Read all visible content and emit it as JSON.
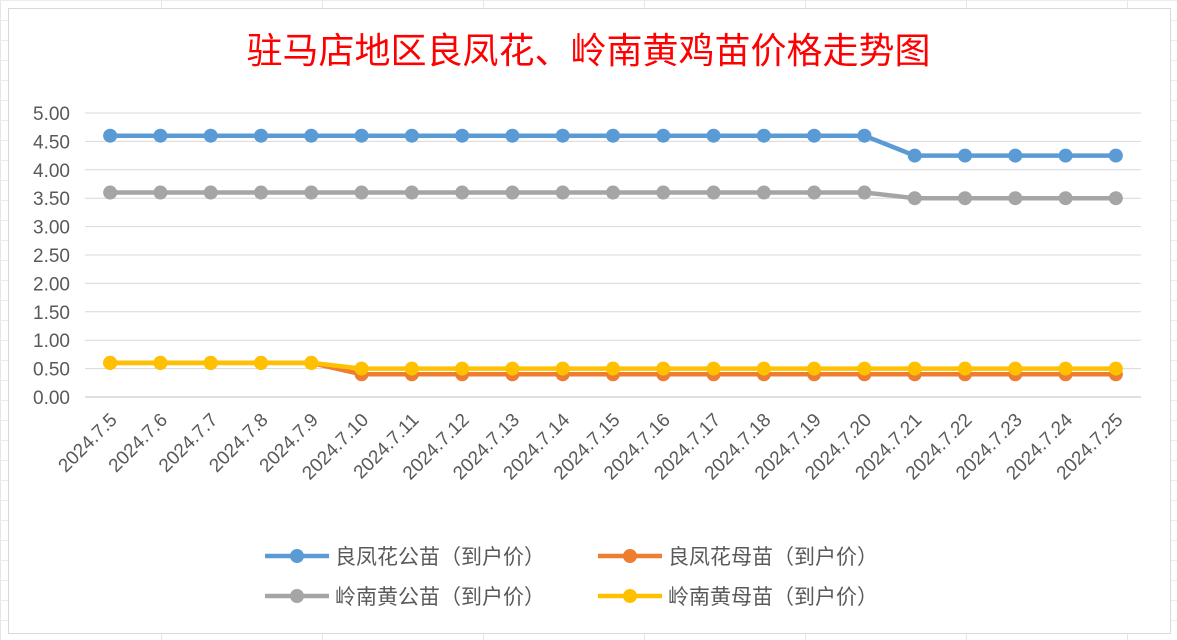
{
  "chart_data": {
    "type": "line",
    "title": "驻马店地区良凤花、岭南黄鸡苗价格走势图",
    "x": [
      "2024.7.5",
      "2024.7.6",
      "2024.7.7",
      "2024.7.8",
      "2024.7.9",
      "2024.7.10",
      "2024.7.11",
      "2024.7.12",
      "2024.7.13",
      "2024.7.14",
      "2024.7.15",
      "2024.7.16",
      "2024.7.17",
      "2024.7.18",
      "2024.7.19",
      "2024.7.20",
      "2024.7.21",
      "2024.7.22",
      "2024.7.23",
      "2024.7.24",
      "2024.7.25"
    ],
    "ylim": [
      0,
      5
    ],
    "yticks": [
      "0.00",
      "0.50",
      "1.00",
      "1.50",
      "2.00",
      "2.50",
      "3.00",
      "3.50",
      "4.00",
      "4.50",
      "5.00"
    ],
    "grid": true,
    "legend_position": "bottom",
    "series": [
      {
        "name": "良凤花公苗（到户价）",
        "color": "#5b9bd5",
        "values": [
          4.6,
          4.6,
          4.6,
          4.6,
          4.6,
          4.6,
          4.6,
          4.6,
          4.6,
          4.6,
          4.6,
          4.6,
          4.6,
          4.6,
          4.6,
          4.6,
          4.25,
          4.25,
          4.25,
          4.25,
          4.25
        ]
      },
      {
        "name": "良凤花母苗（到户价）",
        "color": "#ed7d31",
        "values": [
          0.6,
          0.6,
          0.6,
          0.6,
          0.6,
          0.4,
          0.4,
          0.4,
          0.4,
          0.4,
          0.4,
          0.4,
          0.4,
          0.4,
          0.4,
          0.4,
          0.4,
          0.4,
          0.4,
          0.4,
          0.4
        ]
      },
      {
        "name": "岭南黄公苗（到户价）",
        "color": "#a5a5a5",
        "values": [
          3.6,
          3.6,
          3.6,
          3.6,
          3.6,
          3.6,
          3.6,
          3.6,
          3.6,
          3.6,
          3.6,
          3.6,
          3.6,
          3.6,
          3.6,
          3.6,
          3.5,
          3.5,
          3.5,
          3.5,
          3.5
        ]
      },
      {
        "name": "岭南黄母苗（到户价）",
        "color": "#ffc000",
        "values": [
          0.6,
          0.6,
          0.6,
          0.6,
          0.6,
          0.5,
          0.5,
          0.5,
          0.5,
          0.5,
          0.5,
          0.5,
          0.5,
          0.5,
          0.5,
          0.5,
          0.5,
          0.5,
          0.5,
          0.5,
          0.5
        ]
      }
    ]
  }
}
